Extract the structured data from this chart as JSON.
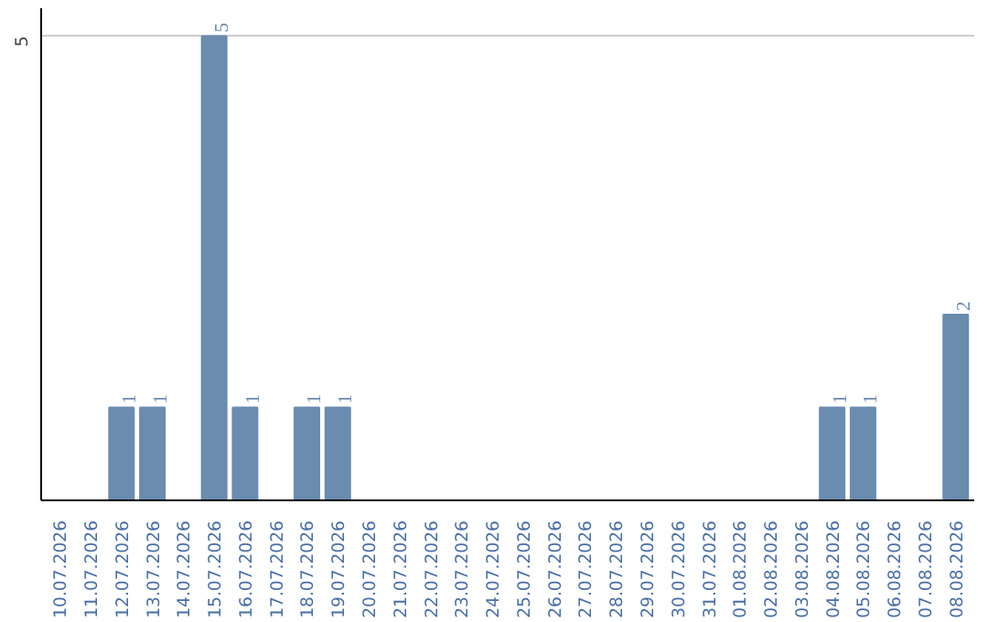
{
  "chart_data": {
    "type": "bar",
    "categories": [
      "10.07.2026",
      "11.07.2026",
      "12.07.2026",
      "13.07.2026",
      "14.07.2026",
      "15.07.2026",
      "16.07.2026",
      "17.07.2026",
      "18.07.2026",
      "19.07.2026",
      "20.07.2026",
      "21.07.2026",
      "22.07.2026",
      "23.07.2026",
      "24.07.2026",
      "25.07.2026",
      "26.07.2026",
      "27.07.2026",
      "28.07.2026",
      "29.07.2026",
      "30.07.2026",
      "31.07.2026",
      "01.08.2026",
      "02.08.2026",
      "03.08.2026",
      "04.08.2026",
      "05.08.2026",
      "06.08.2026",
      "07.08.2026",
      "08.08.2026"
    ],
    "values": [
      0,
      0,
      1,
      1,
      0,
      5,
      1,
      0,
      1,
      1,
      0,
      0,
      0,
      0,
      0,
      0,
      0,
      0,
      0,
      0,
      0,
      0,
      0,
      0,
      0,
      1,
      1,
      0,
      0,
      2
    ],
    "color": "#6a8caf",
    "value_labels": [
      null,
      null,
      "1",
      "1",
      null,
      "5",
      "1",
      null,
      "1",
      "1",
      null,
      null,
      null,
      null,
      null,
      null,
      null,
      null,
      null,
      null,
      null,
      null,
      null,
      null,
      null,
      "1",
      "1",
      null,
      null,
      "2"
    ],
    "ylim": [
      0,
      5.3
    ],
    "yticks": [
      5
    ],
    "grid": "y"
  }
}
